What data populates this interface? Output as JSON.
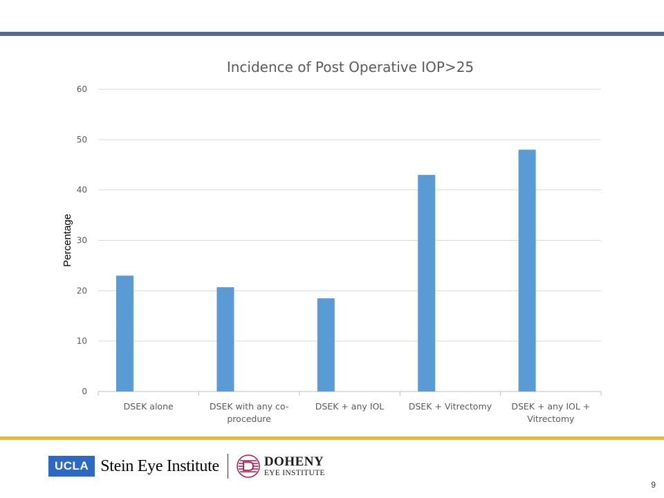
{
  "colors": {
    "top_rule": "#4f6a94",
    "bottom_rule": "#f0b923",
    "bar": "#5b9bd5",
    "grid": "#d9d9d9",
    "axis": "#bfbfbf"
  },
  "chart_data": {
    "type": "bar",
    "title": "Incidence of Post Operative IOP>25",
    "xlabel": "",
    "ylabel": "Percentage",
    "ylim": [
      0,
      60
    ],
    "yticks": [
      0,
      10,
      20,
      30,
      40,
      50,
      60
    ],
    "grid": true,
    "categories": [
      [
        "DSEK alone"
      ],
      [
        "DSEK with any co-",
        "procedure"
      ],
      [
        "DSEK + any IOL"
      ],
      [
        "DSEK + Vitrectomy"
      ],
      [
        "DSEK + any IOL +",
        "Vitrectomy"
      ]
    ],
    "values": [
      23,
      20.7,
      18.5,
      43,
      48
    ]
  },
  "footer": {
    "ucla": "UCLA",
    "stein": "Stein Eye Institute",
    "doheny_name": "DOHENY",
    "doheny_sub": "EYE INSTITUTE"
  },
  "page_number": "9"
}
